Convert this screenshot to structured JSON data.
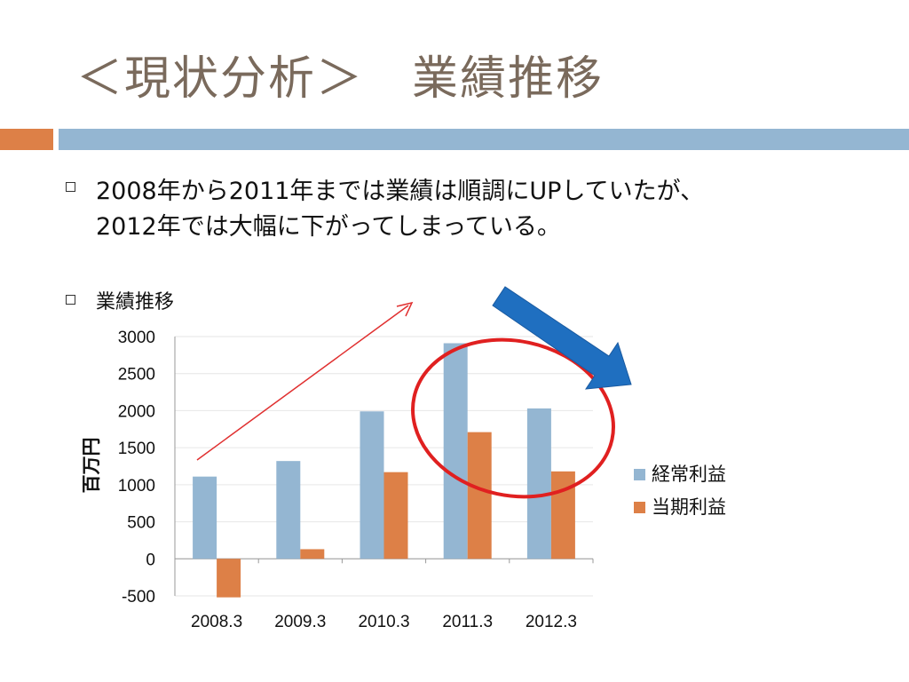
{
  "title": "＜現状分析＞　業績推移",
  "bullets": {
    "line1": "2008年から2011年までは業績は順調にUPしていたが、",
    "line2": "2012年では大幅に下がってしまっている。",
    "line3": "業績推移"
  },
  "colors": {
    "title": "#7a6a5c",
    "accent_orange": "#dd8047",
    "accent_blue": "#94b6d2",
    "series1": "#94b6d2",
    "series2": "#dd8047",
    "arrow_red": "#e03030",
    "ellipse": "#e02020",
    "big_arrow": "#1f6fc0"
  },
  "chart_data": {
    "type": "bar",
    "categories": [
      "2008.3",
      "2009.3",
      "2010.3",
      "2011.3",
      "2012.3"
    ],
    "series": [
      {
        "name": "経常利益",
        "values": [
          1110,
          1320,
          1990,
          2910,
          2030
        ]
      },
      {
        "name": "当期利益",
        "values": [
          -520,
          130,
          1170,
          1710,
          1180
        ]
      }
    ],
    "ylabel": "百万円",
    "xlabel": "",
    "ylim": [
      -500,
      3000
    ],
    "yticks": [
      "3000",
      "2500",
      "2000",
      "1500",
      "1000",
      "500",
      "0",
      "-500"
    ],
    "ytick_values": [
      3000,
      2500,
      2000,
      1500,
      1000,
      500,
      0,
      -500
    ],
    "grid": true,
    "legend": "right"
  }
}
